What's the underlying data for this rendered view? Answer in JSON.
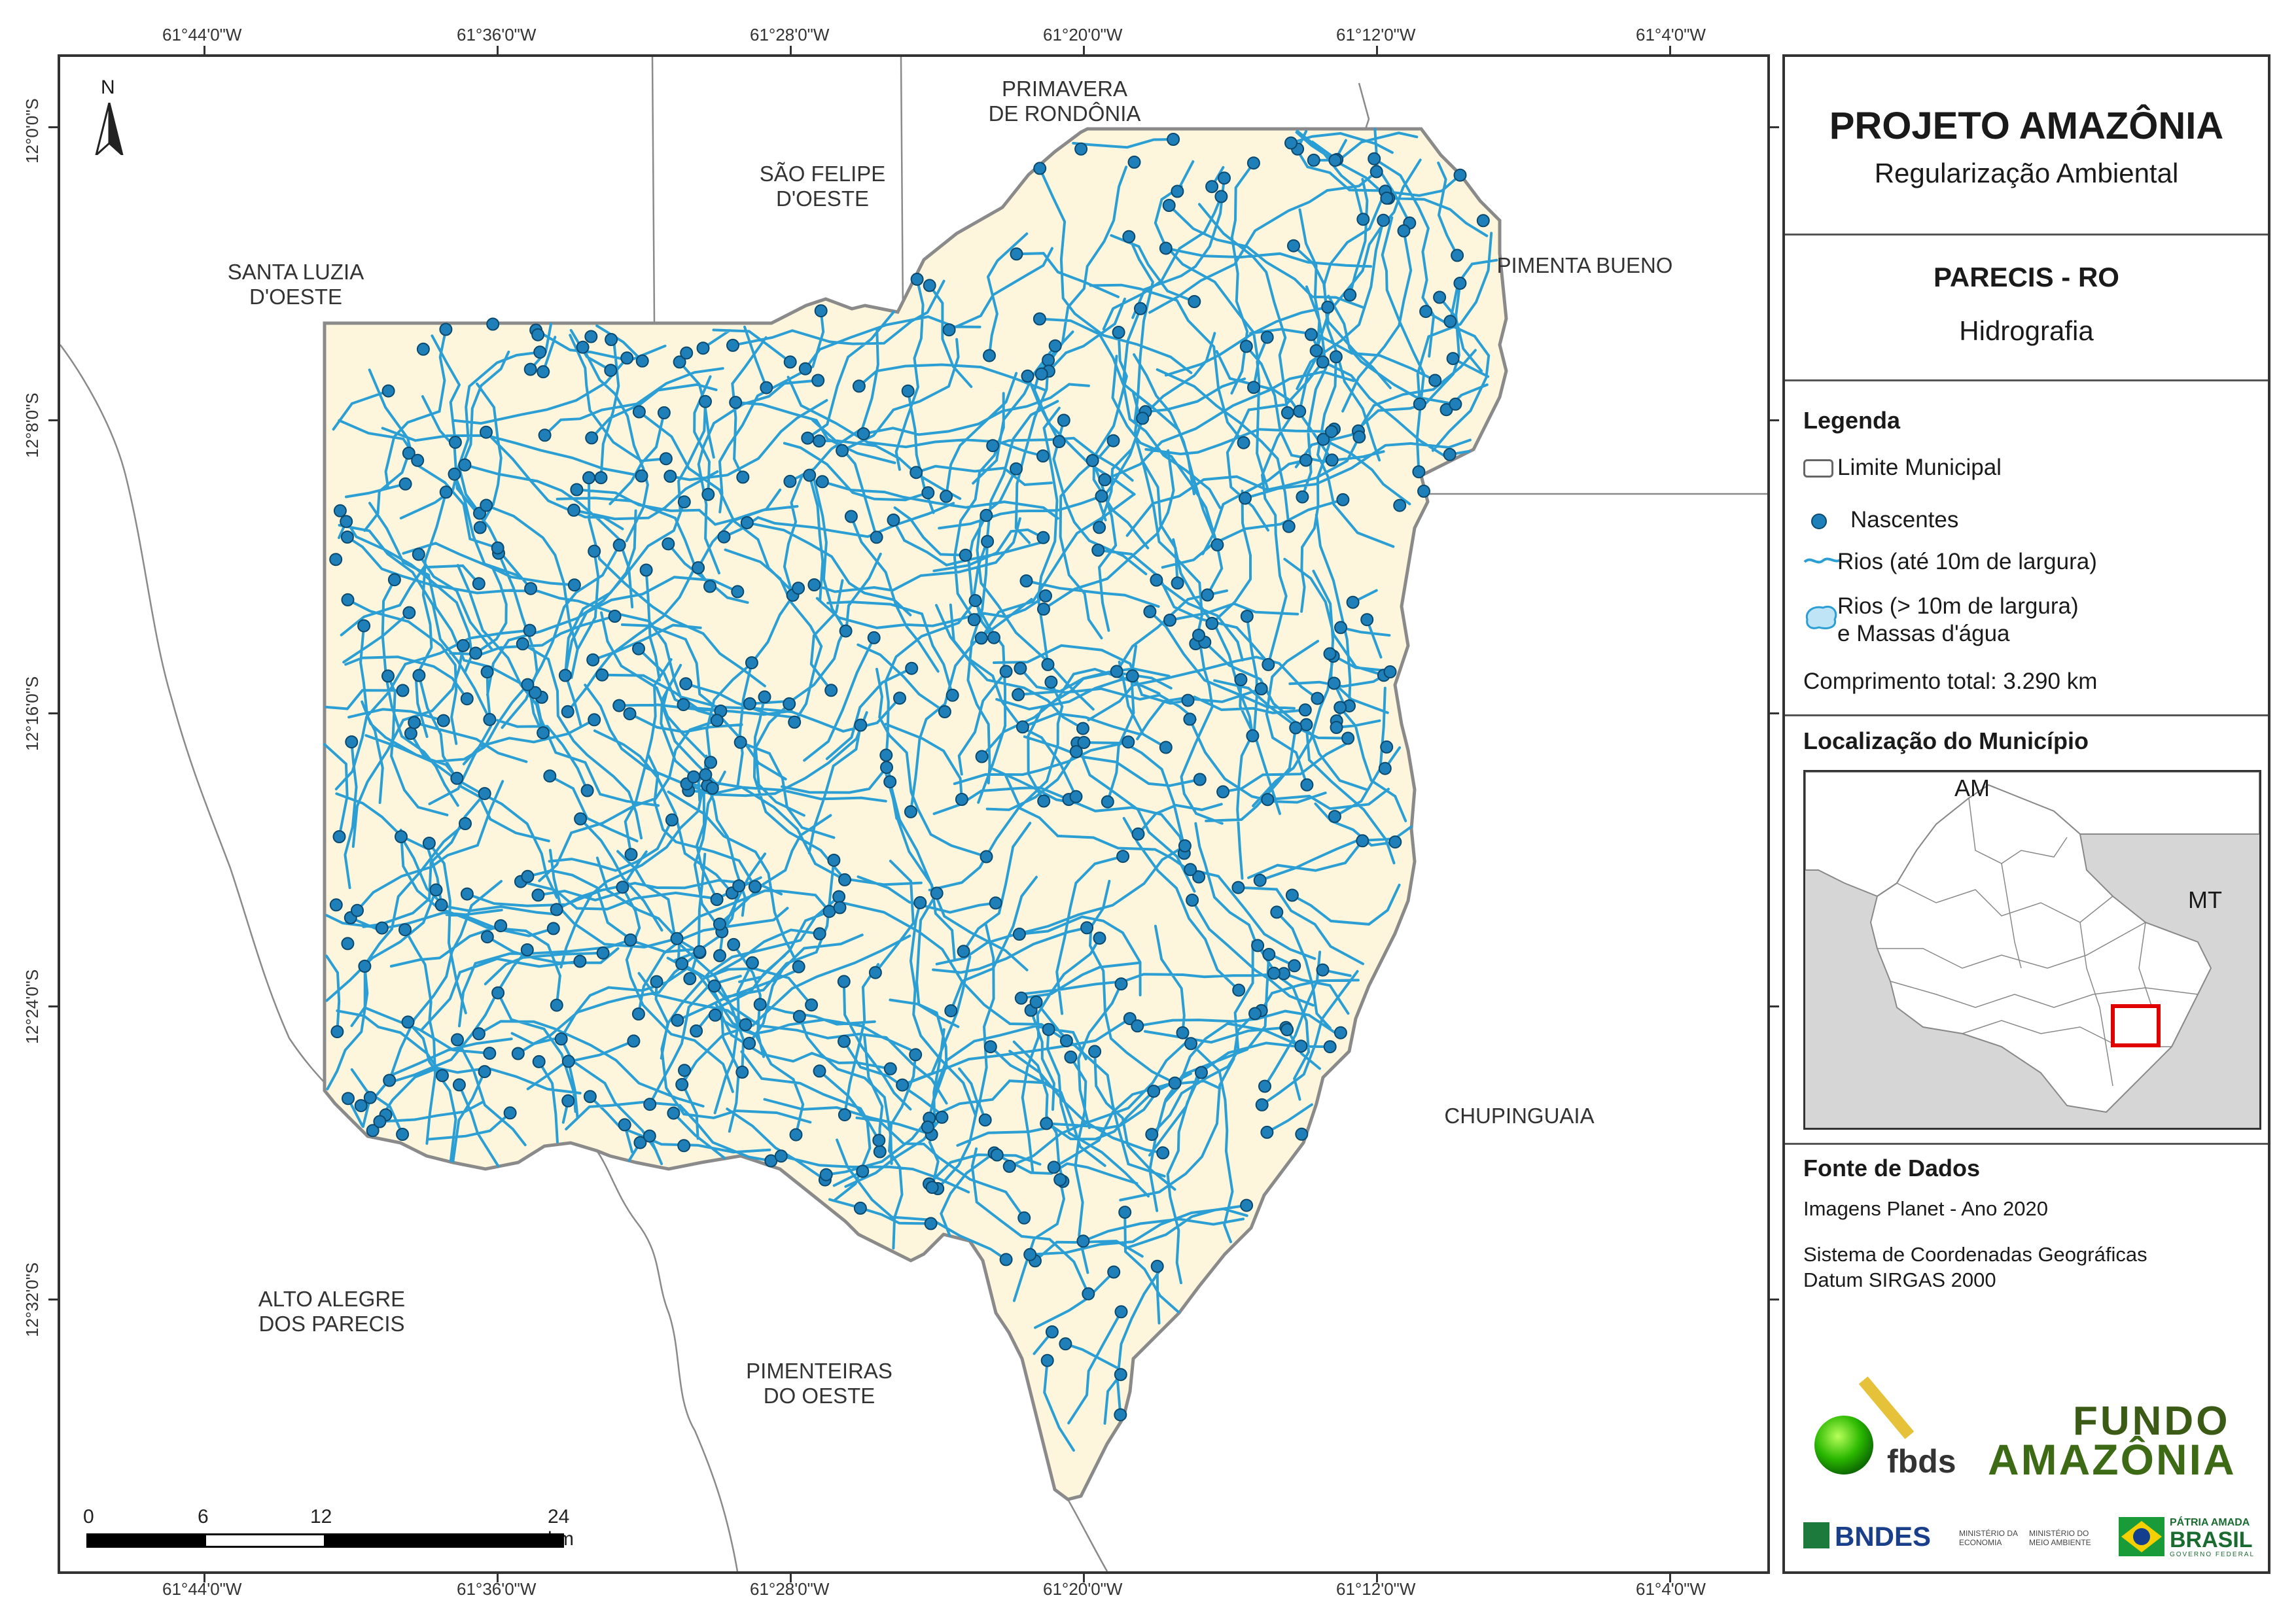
{
  "coordinates": {
    "lon_labels": [
      "61°44'0\"W",
      "61°36'0\"W",
      "61°28'0\"W",
      "61°20'0\"W",
      "61°12'0\"W",
      "61°4'0\"W"
    ],
    "lat_labels": [
      "12°0'0\"S",
      "12°8'0\"S",
      "12°16'0\"S",
      "12°24'0\"S",
      "12°32'0\"S"
    ]
  },
  "map": {
    "north_label": "N",
    "municipalities": {
      "primavera": "PRIMAVERA\nDE RONDÔNIA",
      "sao_felipe": "SÃO FELIPE\nD'OESTE",
      "santa_luzia": "SANTA LUZIA\nD'OESTE",
      "pimenta_bueno": "PIMENTA BUENO",
      "chupinguaia": "CHUPINGUAIA",
      "alto_alegre": "ALTO ALEGRE\nDOS PARECIS",
      "pimenteiras": "PIMENTEIRAS\nDO OESTE"
    },
    "scale_bar": {
      "labels": [
        "0",
        "6",
        "12",
        "24 km"
      ]
    },
    "colors": {
      "municipality_fill": "#fdf6dc",
      "river": "#2b9fd4",
      "spring": "#1f7fb8",
      "boundary": "#8a8a8a"
    }
  },
  "panel": {
    "title": "PROJETO AMAZÔNIA",
    "subtitle": "Regularização Ambiental",
    "municipality": "PARECIS - RO",
    "theme": "Hidrografia",
    "legend_title": "Legenda",
    "legend_items": {
      "limite": "Limite Municipal",
      "nascentes": "Nascentes",
      "rios_small": "Rios (até 10m de largura)",
      "rios_large_1": "Rios (> 10m de largura)",
      "rios_large_2": "e Massas d'água"
    },
    "total_length": "Comprimento total:  3.290 km",
    "location_title": "Localização do Município",
    "location_labels": {
      "am": "AM",
      "mt": "MT"
    },
    "source_title": "Fonte de Dados",
    "source_imagery": "Imagens Planet - Ano 2020",
    "crs_line1": "Sistema de Coordenadas Geográficas",
    "crs_line2": "Datum SIRGAS 2000",
    "logos": {
      "fbds": "fbds",
      "fundo_1": "FUNDO",
      "fundo_2": "AMAZÔNIA",
      "bndes": "BNDES",
      "min_economia": "MINISTÉRIO DA ECONOMIA",
      "min_ambiente": "MINISTÉRIO DO MEIO AMBIENTE",
      "patria": "PÁTRIA AMADA",
      "brasil": "BRASIL",
      "gov": "GOVERNO FEDERAL"
    }
  }
}
